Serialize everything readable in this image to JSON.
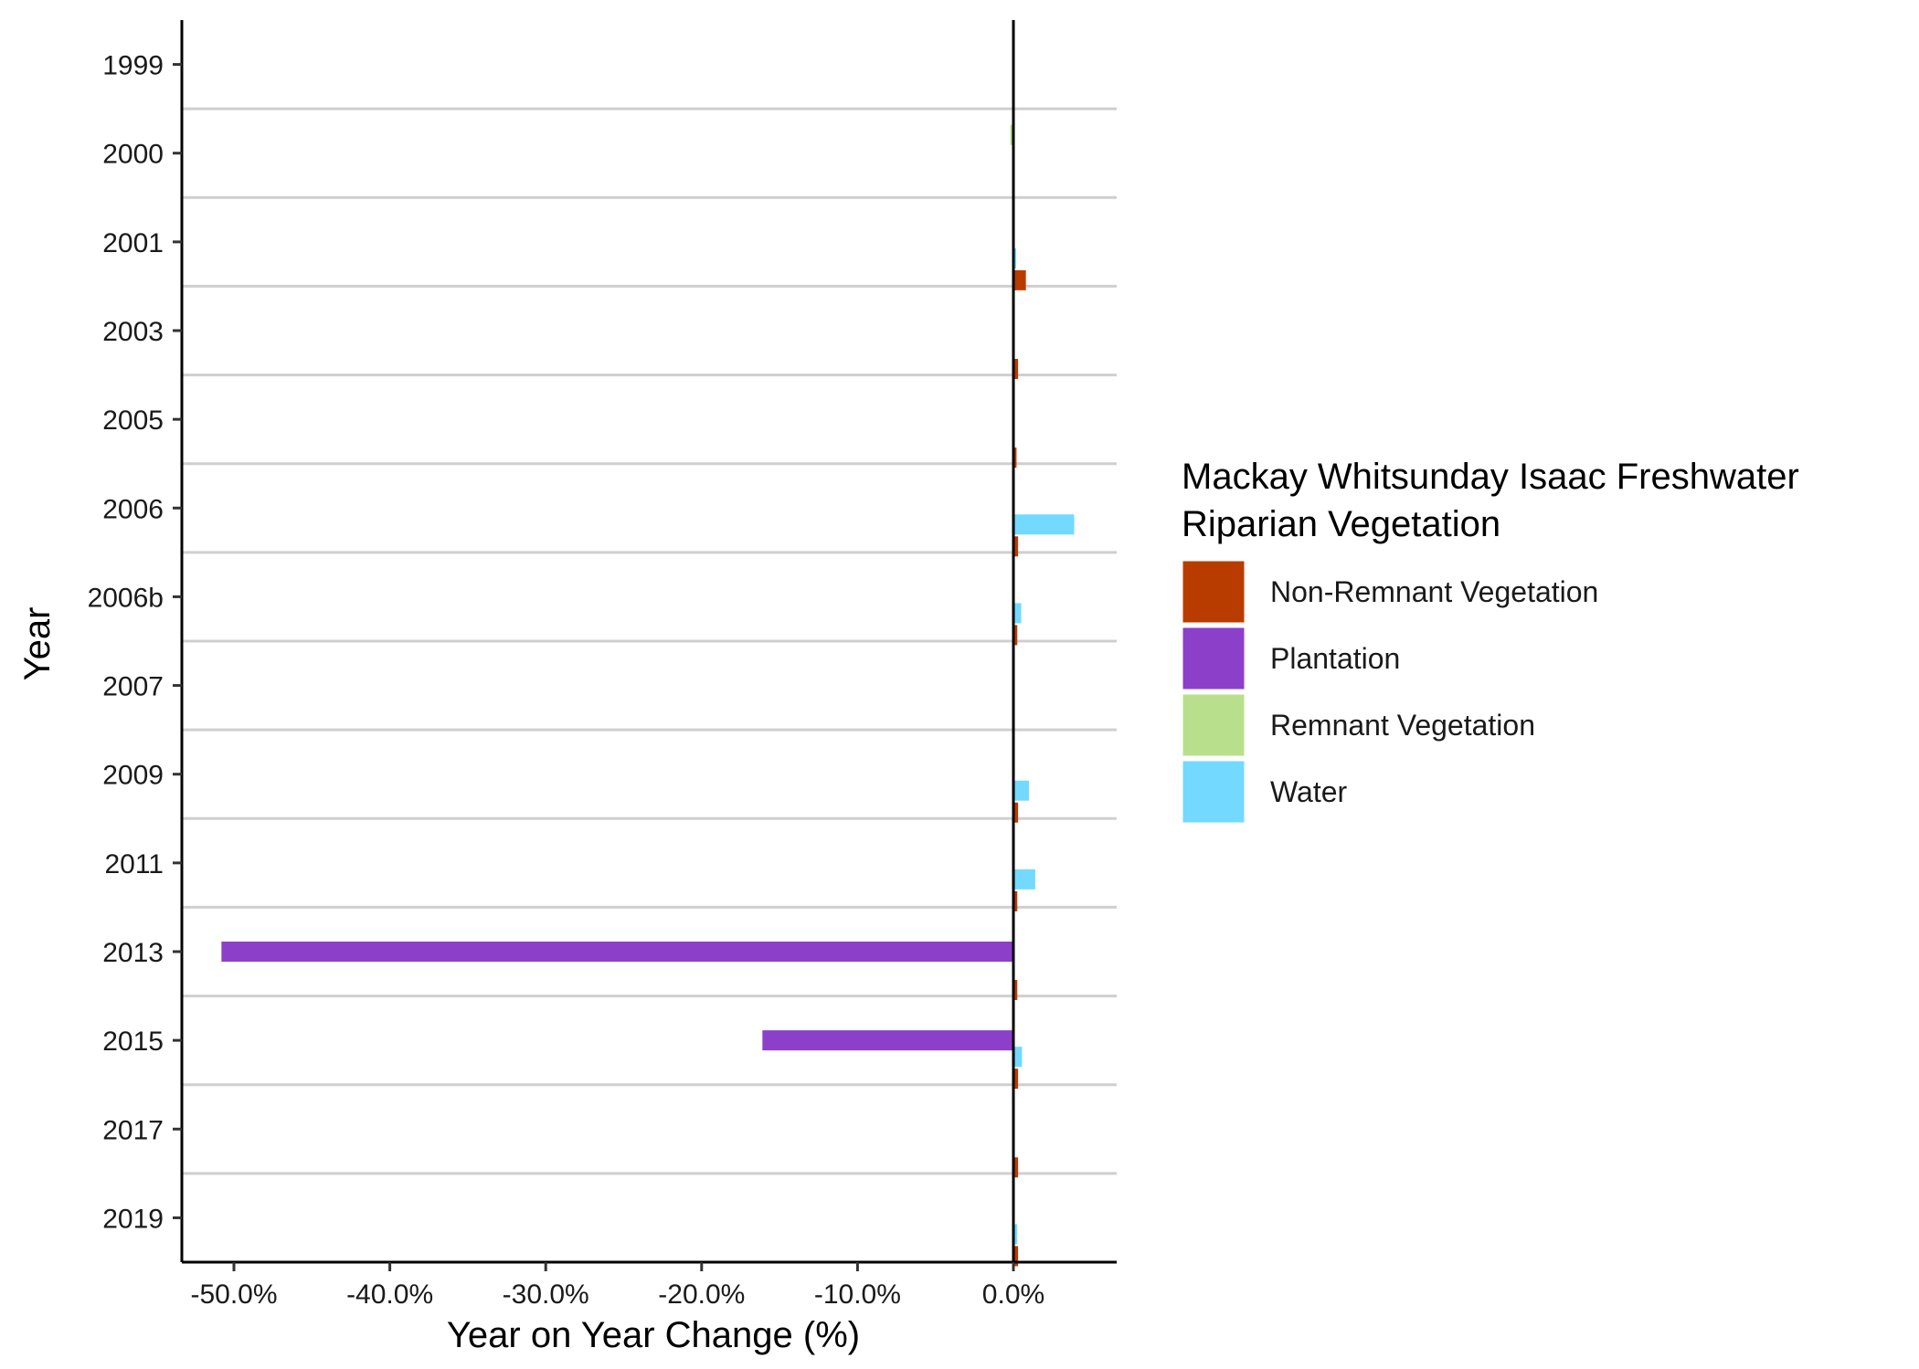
{
  "chart_data": {
    "type": "bar",
    "orientation": "horizontal",
    "xlabel": "Year on Year Change (%)",
    "ylabel": "Year",
    "xlim": [
      -53.5,
      6.8
    ],
    "xticks": [
      -50,
      -40,
      -30,
      -20,
      -10,
      0
    ],
    "xtick_labels": [
      "-50.0%",
      "-40.0%",
      "-30.0%",
      "-20.0%",
      "-10.0%",
      "0.0%"
    ],
    "grid": "horizontal lines between categories",
    "categories": [
      "1999",
      "2000",
      "2001",
      "2003",
      "2005",
      "2006",
      "2006b",
      "2007",
      "2009",
      "2011",
      "2013",
      "2015",
      "2017",
      "2019"
    ],
    "legend": {
      "title_lines": [
        "Mackay Whitsunday Isaac Freshwater",
        "Riparian Vegetation"
      ],
      "position": "right"
    },
    "series": [
      {
        "name": "Non-Remnant Vegetation",
        "color": "#b83c00",
        "values": [
          null,
          null,
          0.8,
          0.3,
          0.2,
          0.3,
          0.25,
          null,
          0.3,
          0.25,
          0.25,
          0.3,
          0.3,
          0.3
        ]
      },
      {
        "name": "Plantation",
        "color": "#8c3fc8",
        "values": [
          null,
          null,
          null,
          null,
          null,
          null,
          null,
          null,
          null,
          null,
          -50.8,
          -16.1,
          null,
          null
        ]
      },
      {
        "name": "Remnant Vegetation",
        "color": "#b8e08c",
        "values": [
          null,
          -0.2,
          null,
          null,
          null,
          null,
          null,
          null,
          null,
          null,
          null,
          null,
          null,
          null
        ]
      },
      {
        "name": "Water",
        "color": "#73d9ff",
        "values": [
          null,
          null,
          0.15,
          null,
          null,
          3.9,
          0.5,
          null,
          1.0,
          1.4,
          null,
          0.55,
          null,
          0.25
        ]
      }
    ]
  }
}
